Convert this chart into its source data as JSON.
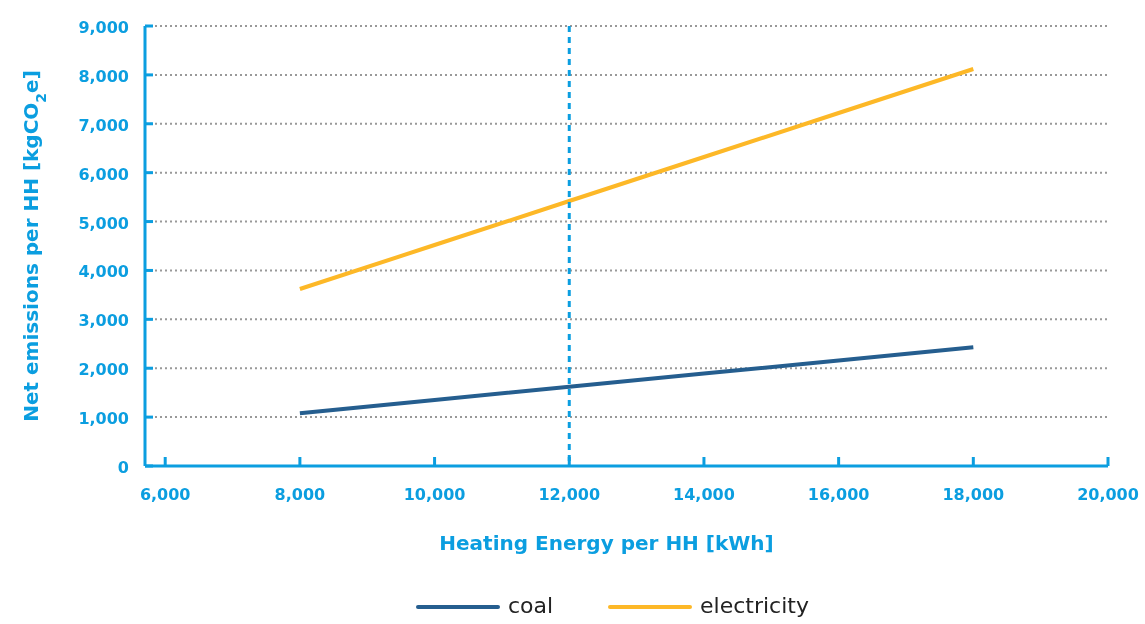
{
  "chart_data": {
    "type": "line",
    "xlabel": "Heating Energy per HH [kWh]",
    "ylabel": "Net emissions per HH [kgCO$_{2}$e]",
    "x": [
      8000,
      10000,
      12000,
      14000,
      16000,
      18000
    ],
    "series": [
      {
        "name": "coal",
        "color": "#255e8f",
        "values": [
          1080,
          1350,
          1620,
          1890,
          2160,
          2430
        ]
      },
      {
        "name": "electricity",
        "color": "#fdb827",
        "values": [
          3620,
          4520,
          5420,
          6320,
          7220,
          8120
        ]
      }
    ],
    "xlim": [
      5700,
      20000
    ],
    "xticks": [
      {
        "value": 6000,
        "label": "6,000"
      },
      {
        "value": 8000,
        "label": "8,000"
      },
      {
        "value": 10000,
        "label": "10,000"
      },
      {
        "value": 12000,
        "label": "12,000"
      },
      {
        "value": 14000,
        "label": "14,000"
      },
      {
        "value": 16000,
        "label": "16,000"
      },
      {
        "value": 18000,
        "label": "18,000"
      },
      {
        "value": 20000,
        "label": "20,000"
      }
    ],
    "ylim": [
      0,
      9000
    ],
    "yticks": [
      0,
      {
        "value": 1000,
        "label": "1,000"
      },
      {
        "value": 2000,
        "label": "2,000"
      },
      {
        "value": 3000,
        "label": "3,000"
      },
      {
        "value": 4000,
        "label": "4,000"
      },
      {
        "value": 5000,
        "label": "5,000"
      },
      {
        "value": 6000,
        "label": "6,000"
      },
      {
        "value": 7000,
        "label": "7,000"
      },
      {
        "value": 8000,
        "label": "8,000"
      },
      {
        "value": 9000,
        "label": "9,000"
      }
    ],
    "ref_lines": [
      {
        "axis": "x",
        "value": 12000,
        "color": "#0b9ee0",
        "line_style": "dashed"
      }
    ],
    "grid": "y",
    "legend": "bottom",
    "marker": "none",
    "line_style": "solid"
  }
}
